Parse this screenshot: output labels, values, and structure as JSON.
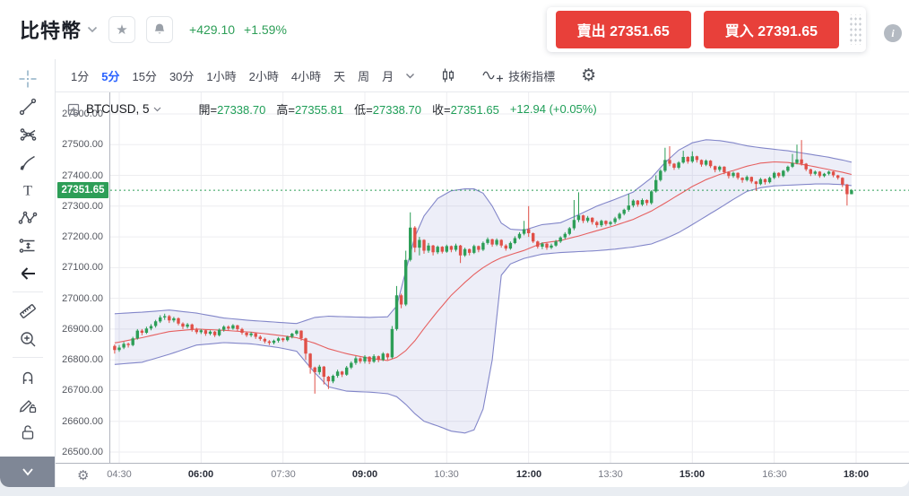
{
  "header": {
    "symbol": "比特幣",
    "change": "+429.10",
    "change_pct": "+1.59%",
    "sell_label": "賣出",
    "sell_price": "27351.65",
    "buy_label": "買入",
    "buy_price": "27391.65",
    "info_label": "i"
  },
  "toolbar": {
    "timeframes": [
      {
        "label": "1分",
        "selected": false
      },
      {
        "label": "5分",
        "selected": true
      },
      {
        "label": "15分",
        "selected": false
      },
      {
        "label": "30分",
        "selected": false
      },
      {
        "label": "1小時",
        "selected": false
      },
      {
        "label": "2小時",
        "selected": false
      },
      {
        "label": "4小時",
        "selected": false
      },
      {
        "label": "天",
        "selected": false
      },
      {
        "label": "周",
        "selected": false
      },
      {
        "label": "月",
        "selected": false
      }
    ],
    "indicators_label": "技術指標"
  },
  "sidebar": {
    "tools": [
      "crosshair",
      "trend-line",
      "fib-gann",
      "brush",
      "text",
      "xabcd-pattern",
      "projection",
      "arrow-left",
      "divider",
      "ruler",
      "zoom-in",
      "divider",
      "magnet",
      "drawing-lock",
      "lock-all"
    ]
  },
  "legend": {
    "symbol_interval": "BTCUSD, 5",
    "ohlc": [
      {
        "label": "開",
        "value": "27338.70"
      },
      {
        "label": "高",
        "value": "27355.81"
      },
      {
        "label": "低",
        "value": "27338.70"
      },
      {
        "label": "收",
        "value": "27351.65"
      }
    ],
    "change": "+12.94 (+0.05%)"
  },
  "axes": {
    "price_labels": [
      "27600.00",
      "27500.00",
      "27400.00",
      "27300.00",
      "27200.00",
      "27100.00",
      "27000.00",
      "26900.00",
      "26800.00",
      "26700.00",
      "26600.00",
      "26500.00"
    ],
    "current_price": "27351.65",
    "time_labels": [
      {
        "label": "04:30",
        "index": 1,
        "bold": false
      },
      {
        "label": "06:00",
        "index": 19,
        "bold": true
      },
      {
        "label": "07:30",
        "index": 37,
        "bold": false
      },
      {
        "label": "09:00",
        "index": 55,
        "bold": true
      },
      {
        "label": "10:30",
        "index": 73,
        "bold": false
      },
      {
        "label": "12:00",
        "index": 91,
        "bold": true
      },
      {
        "label": "13:30",
        "index": 109,
        "bold": false
      },
      {
        "label": "15:00",
        "index": 127,
        "bold": true
      },
      {
        "label": "16:30",
        "index": 145,
        "bold": false
      },
      {
        "label": "18:00",
        "index": 163,
        "bold": true
      }
    ]
  },
  "chart_data": {
    "type": "candlestick",
    "symbol": "BTCUSD",
    "interval": "5分",
    "time_start": "04:25",
    "time_step_min": 5,
    "price_axis_range": [
      26500,
      27600
    ],
    "current_price": 27351.65,
    "last_candle_ohlc": {
      "open": 27338.7,
      "high": 27355.81,
      "low": 27338.7,
      "close": 27351.65,
      "change": "+12.94 (+0.05%)"
    },
    "colors": {
      "up": "#2d9e57",
      "down": "#e05048",
      "band_line": "#8286c9",
      "band_fill": "rgba(128,132,202,0.14)",
      "basis_line": "#e66060",
      "current_line": "#2d9e57",
      "grid": "#ededf0",
      "accent_blue": "#2962ff",
      "button_red": "#e8403a"
    },
    "candles": [
      [
        26845,
        26850,
        26820,
        26832
      ],
      [
        26832,
        26848,
        26826,
        26840
      ],
      [
        26840,
        26858,
        26835,
        26852
      ],
      [
        26852,
        26856,
        26840,
        26848
      ],
      [
        26848,
        26875,
        26844,
        26870
      ],
      [
        26870,
        26900,
        26866,
        26895
      ],
      [
        26895,
        26900,
        26880,
        26888
      ],
      [
        26888,
        26908,
        26884,
        26902
      ],
      [
        26902,
        26916,
        26896,
        26910
      ],
      [
        26910,
        26930,
        26905,
        26925
      ],
      [
        26925,
        26945,
        26920,
        26938
      ],
      [
        26938,
        26950,
        26930,
        26942
      ],
      [
        26942,
        26946,
        26920,
        26928
      ],
      [
        26928,
        26940,
        26922,
        26935
      ],
      [
        26935,
        26938,
        26912,
        26918
      ],
      [
        26918,
        26922,
        26900,
        26908
      ],
      [
        26908,
        26920,
        26902,
        26915
      ],
      [
        26915,
        26918,
        26892,
        26898
      ],
      [
        26898,
        26904,
        26884,
        26890
      ],
      [
        26890,
        26900,
        26884,
        26896
      ],
      [
        26896,
        26898,
        26878,
        26885
      ],
      [
        26885,
        26896,
        26880,
        26892
      ],
      [
        26892,
        26894,
        26874,
        26880
      ],
      [
        26880,
        26902,
        26876,
        26898
      ],
      [
        26898,
        26912,
        26892,
        26908
      ],
      [
        26908,
        26912,
        26896,
        26902
      ],
      [
        26902,
        26916,
        26898,
        26912
      ],
      [
        26912,
        26914,
        26894,
        26900
      ],
      [
        26900,
        26904,
        26882,
        26888
      ],
      [
        26888,
        26892,
        26874,
        26880
      ],
      [
        26880,
        26890,
        26874,
        26886
      ],
      [
        26886,
        26888,
        26868,
        26875
      ],
      [
        26875,
        26880,
        26862,
        26868
      ],
      [
        26868,
        26872,
        26854,
        26860
      ],
      [
        26860,
        26864,
        26848,
        26855
      ],
      [
        26855,
        26866,
        26850,
        26862
      ],
      [
        26862,
        26874,
        26856,
        26870
      ],
      [
        26870,
        26872,
        26858,
        26864
      ],
      [
        26864,
        26878,
        26860,
        26875
      ],
      [
        26875,
        26888,
        26870,
        26885
      ],
      [
        26885,
        26898,
        26880,
        26895
      ],
      [
        26895,
        26896,
        26862,
        26870
      ],
      [
        26870,
        26872,
        26800,
        26820
      ],
      [
        26820,
        26822,
        26755,
        26775
      ],
      [
        26775,
        26778,
        26690,
        26760
      ],
      [
        26760,
        26784,
        26752,
        26778
      ],
      [
        26778,
        26780,
        26720,
        26745
      ],
      [
        26745,
        26748,
        26705,
        26730
      ],
      [
        26730,
        26752,
        26724,
        26748
      ],
      [
        26748,
        26768,
        26742,
        26762
      ],
      [
        26762,
        26764,
        26744,
        26752
      ],
      [
        26752,
        26780,
        26748,
        26775
      ],
      [
        26775,
        26795,
        26770,
        26790
      ],
      [
        26790,
        26812,
        26784,
        26805
      ],
      [
        26805,
        26808,
        26788,
        26795
      ],
      [
        26795,
        26815,
        26788,
        26810
      ],
      [
        26810,
        26812,
        26786,
        26794
      ],
      [
        26794,
        26818,
        26790,
        26812
      ],
      [
        26812,
        26814,
        26792,
        26800
      ],
      [
        26800,
        26825,
        26796,
        26820
      ],
      [
        26820,
        26822,
        26800,
        26808
      ],
      [
        26808,
        26910,
        26804,
        26900
      ],
      [
        26900,
        27040,
        26895,
        27010
      ],
      [
        27010,
        27015,
        26968,
        26980
      ],
      [
        26980,
        27155,
        26975,
        27125
      ],
      [
        27125,
        27280,
        27120,
        27230
      ],
      [
        27230,
        27235,
        27150,
        27165
      ],
      [
        27165,
        27200,
        27140,
        27190
      ],
      [
        27190,
        27192,
        27145,
        27155
      ],
      [
        27155,
        27180,
        27148,
        27172
      ],
      [
        27172,
        27174,
        27140,
        27150
      ],
      [
        27150,
        27172,
        27144,
        27168
      ],
      [
        27168,
        27170,
        27146,
        27152
      ],
      [
        27152,
        27175,
        27148,
        27170
      ],
      [
        27170,
        27172,
        27150,
        27158
      ],
      [
        27158,
        27178,
        27152,
        27172
      ],
      [
        27172,
        27174,
        27115,
        27140
      ],
      [
        27140,
        27165,
        27135,
        27160
      ],
      [
        27160,
        27162,
        27140,
        27148
      ],
      [
        27148,
        27175,
        27144,
        27170
      ],
      [
        27170,
        27172,
        27150,
        27158
      ],
      [
        27158,
        27185,
        27154,
        27180
      ],
      [
        27180,
        27198,
        27175,
        27192
      ],
      [
        27192,
        27194,
        27168,
        27175
      ],
      [
        27175,
        27195,
        27170,
        27190
      ],
      [
        27190,
        27192,
        27165,
        27172
      ],
      [
        27172,
        27176,
        27155,
        27162
      ],
      [
        27162,
        27185,
        27158,
        27180
      ],
      [
        27180,
        27202,
        27176,
        27196
      ],
      [
        27196,
        27215,
        27192,
        27210
      ],
      [
        27210,
        27252,
        27205,
        27225
      ],
      [
        27225,
        27300,
        27200,
        27212
      ],
      [
        27212,
        27214,
        27180,
        27185
      ],
      [
        27185,
        27188,
        27162,
        27168
      ],
      [
        27168,
        27182,
        27160,
        27178
      ],
      [
        27178,
        27180,
        27158,
        27165
      ],
      [
        27165,
        27178,
        27160,
        27172
      ],
      [
        27172,
        27190,
        27168,
        27185
      ],
      [
        27185,
        27202,
        27180,
        27198
      ],
      [
        27198,
        27215,
        27192,
        27210
      ],
      [
        27210,
        27232,
        27205,
        27228
      ],
      [
        27228,
        27320,
        27222,
        27255
      ],
      [
        27255,
        27345,
        27248,
        27270
      ],
      [
        27270,
        27272,
        27245,
        27252
      ],
      [
        27252,
        27268,
        27246,
        27262
      ],
      [
        27262,
        27264,
        27240,
        27248
      ],
      [
        27248,
        27252,
        27230,
        27238
      ],
      [
        27238,
        27256,
        27232,
        27252
      ],
      [
        27252,
        27254,
        27236,
        27242
      ],
      [
        27242,
        27252,
        27236,
        27248
      ],
      [
        27248,
        27265,
        27242,
        27260
      ],
      [
        27260,
        27280,
        27255,
        27275
      ],
      [
        27275,
        27292,
        27270,
        27288
      ],
      [
        27288,
        27340,
        27282,
        27302
      ],
      [
        27302,
        27322,
        27296,
        27318
      ],
      [
        27318,
        27320,
        27298,
        27305
      ],
      [
        27305,
        27325,
        27300,
        27320
      ],
      [
        27320,
        27322,
        27302,
        27310
      ],
      [
        27310,
        27352,
        27305,
        27348
      ],
      [
        27348,
        27400,
        27344,
        27385
      ],
      [
        27385,
        27420,
        27380,
        27415
      ],
      [
        27415,
        27490,
        27410,
        27450
      ],
      [
        27450,
        27495,
        27430,
        27438
      ],
      [
        27438,
        27440,
        27418,
        27425
      ],
      [
        27425,
        27446,
        27420,
        27442
      ],
      [
        27442,
        27480,
        27438,
        27460
      ],
      [
        27460,
        27462,
        27438,
        27445
      ],
      [
        27445,
        27478,
        27440,
        27462
      ],
      [
        27462,
        27464,
        27442,
        27450
      ],
      [
        27450,
        27452,
        27428,
        27435
      ],
      [
        27435,
        27452,
        27430,
        27448
      ],
      [
        27448,
        27450,
        27424,
        27430
      ],
      [
        27430,
        27432,
        27410,
        27418
      ],
      [
        27418,
        27432,
        27412,
        27428
      ],
      [
        27428,
        27430,
        27404,
        27410
      ],
      [
        27410,
        27412,
        27390,
        27398
      ],
      [
        27398,
        27412,
        27392,
        27408
      ],
      [
        27408,
        27410,
        27386,
        27392
      ],
      [
        27392,
        27394,
        27376,
        27385
      ],
      [
        27385,
        27400,
        27380,
        27395
      ],
      [
        27395,
        27396,
        27374,
        27380
      ],
      [
        27380,
        27382,
        27350,
        27372
      ],
      [
        27372,
        27392,
        27368,
        27388
      ],
      [
        27388,
        27390,
        27370,
        27378
      ],
      [
        27378,
        27396,
        27374,
        27392
      ],
      [
        27392,
        27412,
        27388,
        27408
      ],
      [
        27408,
        27410,
        27392,
        27398
      ],
      [
        27398,
        27418,
        27394,
        27415
      ],
      [
        27415,
        27432,
        27410,
        27428
      ],
      [
        27428,
        27470,
        27424,
        27440
      ],
      [
        27440,
        27500,
        27436,
        27452
      ],
      [
        27452,
        27515,
        27432,
        27438
      ],
      [
        27438,
        27440,
        27414,
        27420
      ],
      [
        27420,
        27422,
        27398,
        27405
      ],
      [
        27405,
        27416,
        27400,
        27412
      ],
      [
        27412,
        27414,
        27392,
        27398
      ],
      [
        27398,
        27408,
        27394,
        27405
      ],
      [
        27405,
        27415,
        27400,
        27412
      ],
      [
        27412,
        27414,
        27394,
        27400
      ],
      [
        27400,
        27402,
        27386,
        27392
      ],
      [
        27392,
        27394,
        27362,
        27370
      ],
      [
        27370,
        27372,
        27302,
        27338.7
      ],
      [
        27338.7,
        27355.81,
        27338.7,
        27351.65
      ]
    ],
    "bollinger_keypoints": [
      [
        0,
        26950,
        26855,
        26785
      ],
      [
        6,
        26955,
        26872,
        26792
      ],
      [
        12,
        26962,
        26892,
        26818
      ],
      [
        18,
        26952,
        26900,
        26848
      ],
      [
        24,
        26936,
        26896,
        26856
      ],
      [
        30,
        26928,
        26890,
        26852
      ],
      [
        36,
        26922,
        26880,
        26840
      ],
      [
        40,
        26918,
        26872,
        26828
      ],
      [
        44,
        26938,
        26854,
        26758
      ],
      [
        47,
        26942,
        26836,
        26712
      ],
      [
        51,
        26940,
        26820,
        26698
      ],
      [
        56,
        26938,
        26805,
        26695
      ],
      [
        60,
        26940,
        26798,
        26690
      ],
      [
        62,
        26975,
        26808,
        26680
      ],
      [
        64,
        27090,
        26830,
        26655
      ],
      [
        66,
        27200,
        26862,
        26625
      ],
      [
        68,
        27268,
        26902,
        26600
      ],
      [
        71,
        27325,
        26958,
        26585
      ],
      [
        74,
        27350,
        27010,
        26568
      ],
      [
        77,
        27356,
        27052,
        26562
      ],
      [
        79,
        27356,
        27078,
        26572
      ],
      [
        81,
        27342,
        27100,
        26640
      ],
      [
        83,
        27300,
        27118,
        26800
      ],
      [
        85,
        27245,
        27132,
        27075
      ],
      [
        87,
        27225,
        27142,
        27112
      ],
      [
        90,
        27222,
        27156,
        27130
      ],
      [
        94,
        27240,
        27180,
        27144
      ],
      [
        98,
        27246,
        27188,
        27149
      ],
      [
        102,
        27272,
        27203,
        27152
      ],
      [
        106,
        27300,
        27220,
        27155
      ],
      [
        110,
        27322,
        27237,
        27160
      ],
      [
        114,
        27346,
        27257,
        27167
      ],
      [
        118,
        27392,
        27284,
        27177
      ],
      [
        121,
        27442,
        27310,
        27194
      ],
      [
        124,
        27482,
        27337,
        27214
      ],
      [
        127,
        27506,
        27364,
        27240
      ],
      [
        130,
        27516,
        27386,
        27267
      ],
      [
        133,
        27513,
        27403,
        27294
      ],
      [
        136,
        27506,
        27416,
        27322
      ],
      [
        139,
        27496,
        27430,
        27348
      ],
      [
        142,
        27490,
        27440,
        27360
      ],
      [
        145,
        27485,
        27444,
        27366
      ],
      [
        148,
        27480,
        27442,
        27368
      ],
      [
        151,
        27473,
        27436,
        27370
      ],
      [
        154,
        27466,
        27428,
        27372
      ],
      [
        157,
        27459,
        27419,
        27372
      ],
      [
        160,
        27450,
        27410,
        27370
      ],
      [
        162,
        27443,
        27403,
        27367
      ]
    ]
  }
}
